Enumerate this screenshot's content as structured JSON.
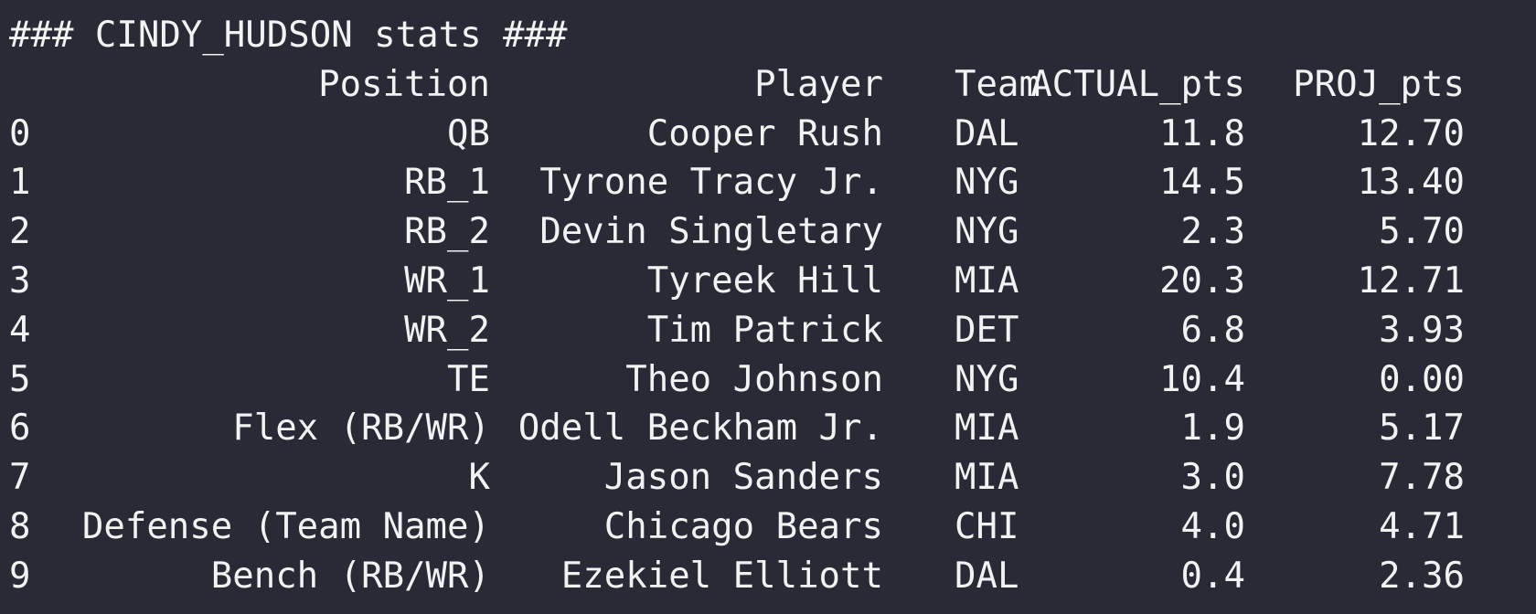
{
  "title": "### CINDY_HUDSON stats ###",
  "columns": {
    "position": "Position",
    "player": "Player",
    "team": "Team",
    "actual": "ACTUAL_pts",
    "proj": "PROJ_pts"
  },
  "rows": [
    {
      "index": "0",
      "position": "QB",
      "player": "Cooper Rush",
      "team": "DAL",
      "actual": "11.8",
      "proj": "12.70"
    },
    {
      "index": "1",
      "position": "RB_1",
      "player": "Tyrone Tracy Jr.",
      "team": "NYG",
      "actual": "14.5",
      "proj": "13.40"
    },
    {
      "index": "2",
      "position": "RB_2",
      "player": "Devin Singletary",
      "team": "NYG",
      "actual": "2.3",
      "proj": "5.70"
    },
    {
      "index": "3",
      "position": "WR_1",
      "player": "Tyreek Hill",
      "team": "MIA",
      "actual": "20.3",
      "proj": "12.71"
    },
    {
      "index": "4",
      "position": "WR_2",
      "player": "Tim Patrick",
      "team": "DET",
      "actual": "6.8",
      "proj": "3.93"
    },
    {
      "index": "5",
      "position": "TE",
      "player": "Theo Johnson",
      "team": "NYG",
      "actual": "10.4",
      "proj": "0.00"
    },
    {
      "index": "6",
      "position": "Flex (RB/WR)",
      "player": "Odell Beckham Jr.",
      "team": "MIA",
      "actual": "1.9",
      "proj": "5.17"
    },
    {
      "index": "7",
      "position": "K",
      "player": "Jason Sanders",
      "team": "MIA",
      "actual": "3.0",
      "proj": "7.78"
    },
    {
      "index": "8",
      "position": "Defense (Team Name)",
      "player": "Chicago Bears",
      "team": "CHI",
      "actual": "4.0",
      "proj": "4.71"
    },
    {
      "index": "9",
      "position": "Bench (RB/WR)",
      "player": "Ezekiel Elliott",
      "team": "DAL",
      "actual": "0.4",
      "proj": "2.36"
    }
  ],
  "colors": {
    "background": "#282a36",
    "text": "#f2f2f2"
  }
}
